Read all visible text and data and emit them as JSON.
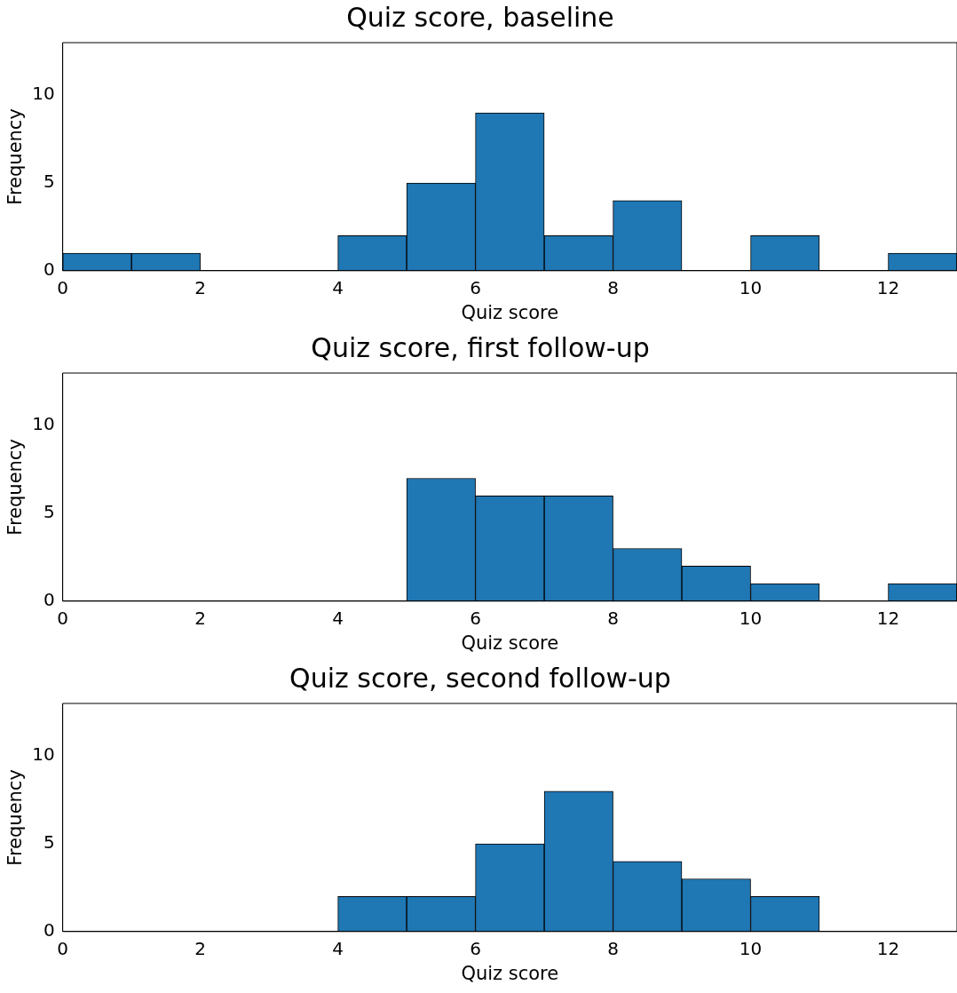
{
  "chart_data": [
    {
      "type": "histogram",
      "title": "Quiz score, baseline",
      "xlabel": "Quiz score",
      "ylabel": "Frequency",
      "bins": [
        0,
        1,
        2,
        3,
        4,
        5,
        6,
        7,
        8,
        9,
        10,
        11,
        12,
        13
      ],
      "values": [
        1,
        1,
        0,
        0,
        2,
        5,
        9,
        2,
        4,
        0,
        2,
        0,
        1
      ],
      "color": "#1f77b4",
      "xlim": [
        0,
        13
      ],
      "xticks": [
        0,
        2,
        4,
        6,
        8,
        10,
        12
      ],
      "ylim": [
        0,
        13
      ],
      "yticks": [
        0,
        5,
        10
      ]
    },
    {
      "type": "histogram",
      "title": "Quiz score, first follow-up",
      "xlabel": "Quiz score",
      "ylabel": "Frequency",
      "bins": [
        0,
        1,
        2,
        3,
        4,
        5,
        6,
        7,
        8,
        9,
        10,
        11,
        12,
        13
      ],
      "values": [
        0,
        0,
        0,
        0,
        0,
        7,
        6,
        6,
        3,
        2,
        1,
        0,
        1
      ],
      "color": "#1f77b4",
      "xlim": [
        0,
        13
      ],
      "xticks": [
        0,
        2,
        4,
        6,
        8,
        10,
        12
      ],
      "ylim": [
        0,
        13
      ],
      "yticks": [
        0,
        5,
        10
      ]
    },
    {
      "type": "histogram",
      "title": "Quiz score, second follow-up",
      "xlabel": "Quiz score",
      "ylabel": "Frequency",
      "bins": [
        0,
        1,
        2,
        3,
        4,
        5,
        6,
        7,
        8,
        9,
        10,
        11,
        12,
        13
      ],
      "values": [
        0,
        0,
        0,
        0,
        2,
        2,
        5,
        8,
        4,
        3,
        2,
        0,
        0
      ],
      "color": "#1f77b4",
      "xlim": [
        0,
        13
      ],
      "xticks": [
        0,
        2,
        4,
        6,
        8,
        10,
        12
      ],
      "ylim": [
        0,
        13
      ],
      "yticks": [
        0,
        5,
        10
      ]
    }
  ]
}
